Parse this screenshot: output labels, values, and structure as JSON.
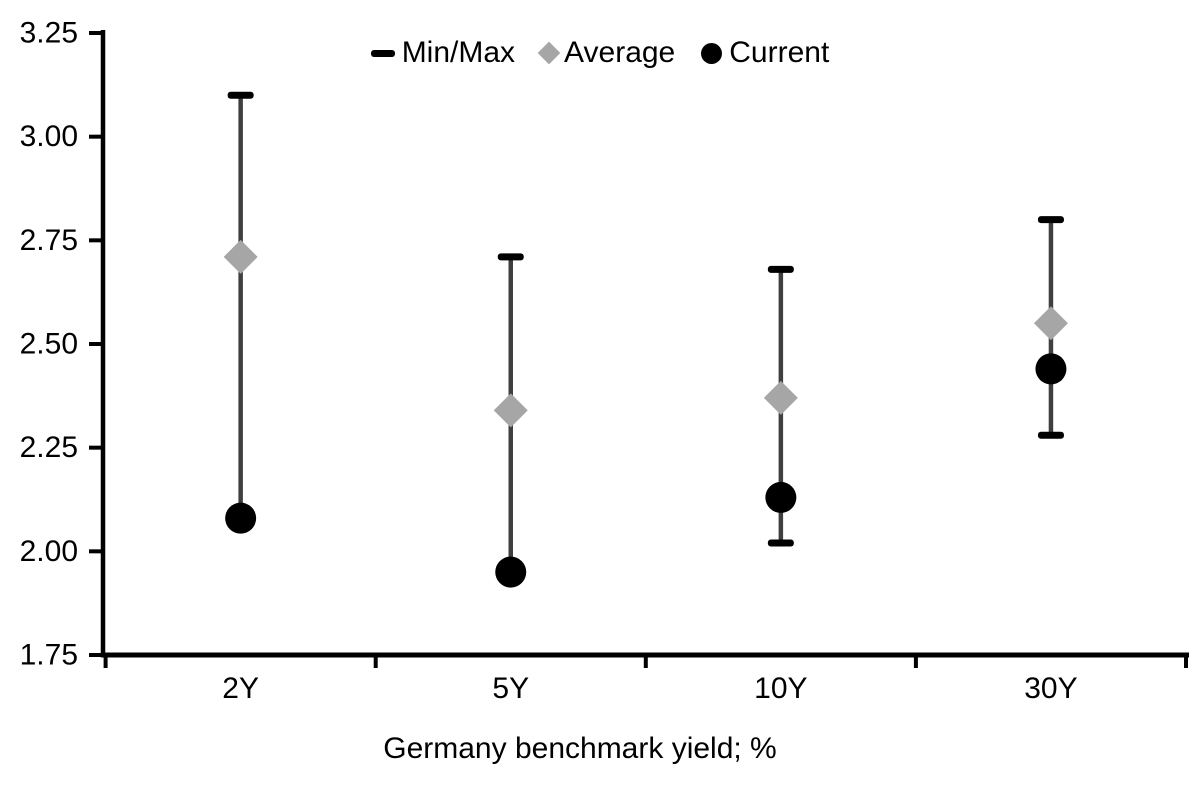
{
  "chart_data": {
    "type": "scatter",
    "title": "",
    "categories": [
      "2Y",
      "5Y",
      "10Y",
      "30Y"
    ],
    "series": [
      {
        "name": "Min/Max",
        "role": "range",
        "marker": "dash",
        "min": [
          2.08,
          1.95,
          2.02,
          2.28
        ],
        "max": [
          3.1,
          2.71,
          2.68,
          2.8
        ]
      },
      {
        "name": "Average",
        "role": "point",
        "marker": "diamond",
        "values": [
          2.71,
          2.34,
          2.37,
          2.55
        ]
      },
      {
        "name": "Current",
        "role": "point",
        "marker": "circle",
        "values": [
          2.08,
          1.95,
          2.13,
          2.44
        ]
      }
    ],
    "xlabel": "Germany benchmark yield; %",
    "ylabel": "",
    "ylim": [
      1.75,
      3.25
    ],
    "yticks": [
      3.25,
      3.0,
      2.75,
      2.5,
      2.25,
      2.0,
      1.75
    ],
    "ytick_labels": [
      "3.25",
      "3.00",
      "2.75",
      "2.50",
      "2.25",
      "2.00",
      "1.75"
    ],
    "grid": false,
    "legend_position": "top-center",
    "colors": {
      "minmax": "#000000",
      "range_line": "#3f3f3f",
      "average": "#a6a6a6",
      "current": "#000000",
      "axis": "#000000",
      "background": "#ffffff"
    }
  }
}
